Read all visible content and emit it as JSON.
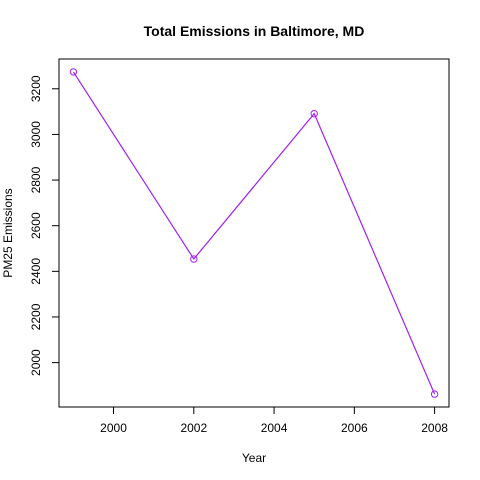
{
  "chart_data": {
    "type": "line",
    "title": "Total Emissions in Baltimore, MD",
    "xlabel": "Year",
    "ylabel": "PM25 Emissions",
    "x": [
      1999,
      2002,
      2005,
      2008
    ],
    "series": [
      {
        "values": [
          3274,
          2454,
          3091,
          1862
        ]
      }
    ],
    "xlim": [
      1999,
      2008
    ],
    "ylim": [
      1862,
      3274
    ],
    "x_ticks": [
      2000,
      2002,
      2004,
      2006,
      2008
    ],
    "y_ticks": [
      2000,
      2200,
      2400,
      2600,
      2800,
      3000,
      3200
    ],
    "marker": "open-circle",
    "grid": false,
    "line_color": "#a020f0"
  }
}
